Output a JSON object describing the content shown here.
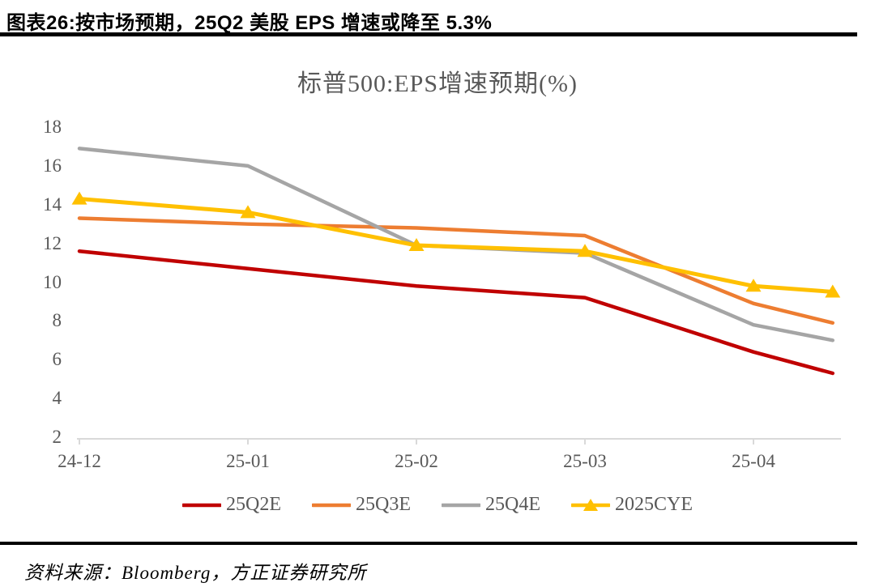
{
  "header": {
    "title": "图表26:按市场预期，25Q2 美股 EPS 增速或降至 5.3%"
  },
  "footer": {
    "source": "资料来源：Bloomberg，方正证券研究所"
  },
  "chart_data": {
    "type": "line",
    "title": "标普500:EPS增速预期(%)",
    "x_tick_labels": [
      "24-12",
      "25-01",
      "25-02",
      "25-03",
      "25-04"
    ],
    "x": [
      0,
      1,
      2,
      3,
      4,
      4.47
    ],
    "series": [
      {
        "name": "25Q2E",
        "color": "#C00000",
        "marker": "none",
        "values": [
          11.6,
          10.7,
          9.8,
          9.2,
          6.4,
          5.3
        ]
      },
      {
        "name": "25Q3E",
        "color": "#ED7D31",
        "marker": "none",
        "values": [
          13.3,
          13.0,
          12.8,
          12.4,
          8.9,
          7.9
        ]
      },
      {
        "name": "25Q4E",
        "color": "#A5A5A5",
        "marker": "none",
        "values": [
          16.9,
          16.0,
          11.9,
          11.5,
          7.8,
          7.0
        ]
      },
      {
        "name": "2025CYE",
        "color": "#FFC000",
        "marker": "triangle",
        "values": [
          14.3,
          13.6,
          11.9,
          11.6,
          9.8,
          9.5
        ]
      }
    ],
    "y_ticks": [
      18,
      16,
      14,
      12,
      10,
      8,
      6,
      4,
      2
    ],
    "ylim": [
      2,
      18
    ],
    "grid": false,
    "legend_position": "bottom",
    "axis_color": "#D9D9D9",
    "label_color": "#595959"
  }
}
